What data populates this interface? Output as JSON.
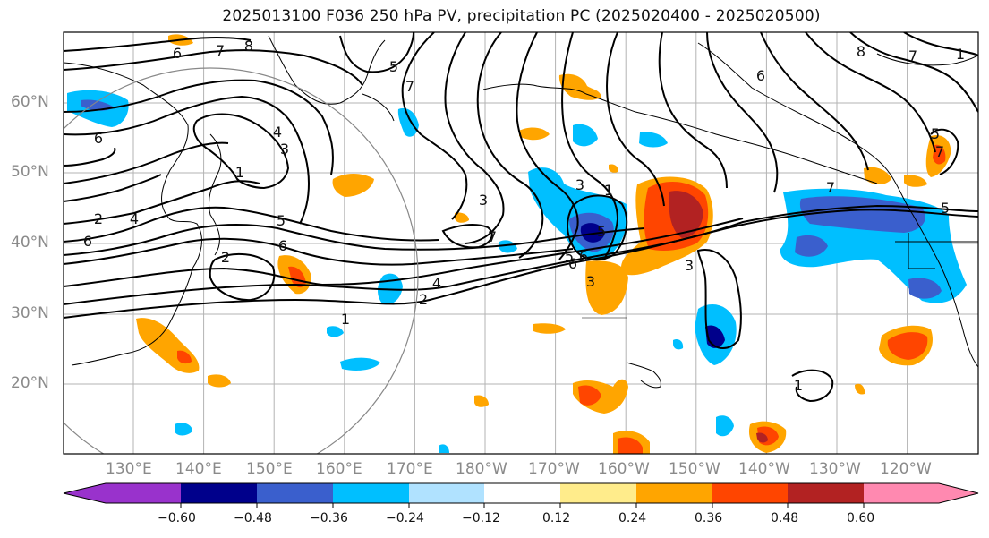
{
  "title": "2025013100 F036 250 hPa PV, precipitation PC (2025020400 - 2025020500)",
  "lat_labels": [
    "60°N",
    "50°N",
    "40°N",
    "30°N",
    "20°N"
  ],
  "lon_labels": [
    "130°E",
    "140°E",
    "150°E",
    "160°E",
    "170°E",
    "180°W",
    "170°W",
    "160°W",
    "150°W",
    "140°W",
    "130°W",
    "120°W"
  ],
  "colorbar": {
    "ticks": [
      "−0.60",
      "−0.48",
      "−0.36",
      "−0.24",
      "−0.12",
      "0.12",
      "0.24",
      "0.36",
      "0.48",
      "0.60"
    ],
    "colors": [
      "#9932cc",
      "#00008b",
      "#3a5fcd",
      "#00bfff",
      "#b0e2ff",
      "#ffffff",
      "#ffec8b",
      "#ffa500",
      "#ff4500",
      "#b22222",
      "#ff89b0"
    ]
  },
  "contour_labels": [
    "6",
    "7",
    "8",
    "5",
    "7",
    "6",
    "3",
    "4",
    "1",
    "5",
    "6",
    "2",
    "7",
    "3",
    "1",
    "3",
    "5",
    "6",
    "3",
    "5",
    "1",
    "2",
    "4",
    "7",
    "3",
    "6",
    "5",
    "1",
    "8",
    "7",
    "6",
    "7",
    "5",
    "1",
    "2",
    "4",
    "6"
  ],
  "colors": {
    "positive_strong": "#b22222",
    "positive": "#ff4500",
    "positive_light": "#ffa500",
    "negative": "#00bfff",
    "negative_strong": "#00008b"
  }
}
